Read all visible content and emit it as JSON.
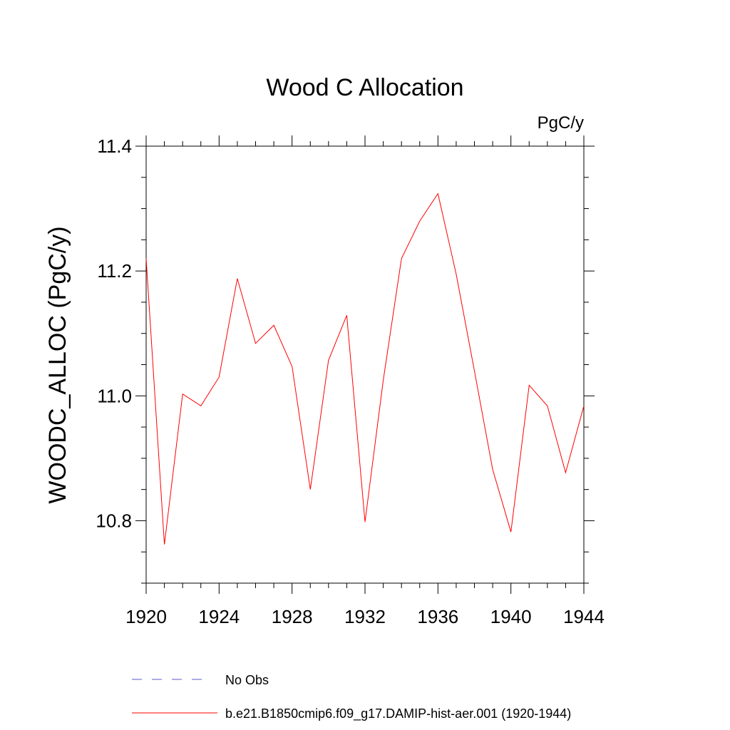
{
  "chart_data": {
    "type": "line",
    "title": "Wood C Allocation",
    "units_label": "PgC/y",
    "xlabel": "",
    "ylabel": "WOODC_ALLOC  (PgC/y)",
    "xlim": [
      1920,
      1944
    ],
    "ylim": [
      10.7,
      11.4
    ],
    "x_ticks": [
      1920,
      1924,
      1928,
      1932,
      1936,
      1940,
      1944
    ],
    "x_tick_labels": [
      "1920",
      "1924",
      "1928",
      "1932",
      "1936",
      "1940",
      "1944"
    ],
    "y_ticks": [
      10.8,
      11.0,
      11.2,
      11.4
    ],
    "y_tick_labels": [
      "10.8",
      "11.0",
      "11.2",
      "11.4"
    ],
    "grid": false,
    "legend_position": "bottom",
    "series": [
      {
        "name": "No Obs",
        "color": "#5a5ac8",
        "style": "dashed",
        "x": [],
        "values": []
      },
      {
        "name": "b.e21.B1850cmip6.f09_g17.DAMIP-hist-aer.001 (1920-1944)",
        "color": "#ff0000",
        "style": "solid",
        "x": [
          1920,
          1921,
          1922,
          1923,
          1924,
          1925,
          1926,
          1927,
          1928,
          1929,
          1930,
          1931,
          1932,
          1933,
          1934,
          1935,
          1936,
          1937,
          1938,
          1939,
          1940,
          1941,
          1942,
          1943,
          1944
        ],
        "values": [
          11.22,
          10.762,
          11.003,
          10.984,
          11.03,
          11.188,
          11.084,
          11.113,
          11.047,
          10.85,
          11.057,
          11.129,
          10.798,
          11.025,
          11.22,
          11.28,
          11.324,
          11.195,
          11.04,
          10.882,
          10.782,
          11.017,
          10.984,
          10.877,
          10.984
        ]
      }
    ]
  }
}
